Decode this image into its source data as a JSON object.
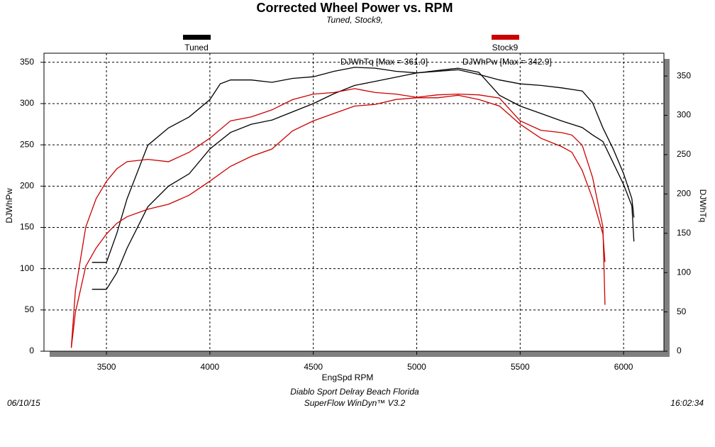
{
  "chart_data": {
    "type": "line",
    "title": "Corrected Wheel Power vs. RPM",
    "subtitle": "Tuned, Stock9,",
    "x_label": "EngSpd RPM",
    "y_label": "DJWhPw",
    "y2_label": "DJWhTq",
    "annotations": [
      "DJWhTq [Max = 361.0]",
      "DJWhPw [Max = 342.9]"
    ],
    "footer": [
      "Diablo Sport Delray Beach Florida",
      "SuperFlow WinDyn™ V3.2"
    ],
    "date": "06/10/15",
    "time": "16:02:34",
    "xlim": [
      3198,
      6195
    ],
    "xticks": [
      3500,
      4000,
      4500,
      5000,
      5500,
      6000
    ],
    "ylim": [
      0,
      361
    ],
    "yticks": [
      0,
      50,
      100,
      150,
      200,
      250,
      300,
      350
    ],
    "y2lim": [
      0,
      379
    ],
    "y2ticks": [
      0,
      50,
      100,
      150,
      200,
      250,
      300,
      350
    ],
    "grid": true,
    "series": [
      {
        "name": "Tuned",
        "color": "#000000",
        "x": [
          3430,
          3500,
          3550,
          3600,
          3700,
          3800,
          3900,
          4000,
          4050,
          4100,
          4200,
          4300,
          4400,
          4500,
          4600,
          4700,
          4800,
          4900,
          5000,
          5100,
          5200,
          5300,
          5400,
          5500,
          5600,
          5700,
          5800,
          5850,
          5900,
          5950,
          6000,
          6040,
          6050
        ],
        "values": [
          75,
          75,
          95,
          125,
          175,
          200,
          215,
          245,
          255,
          265,
          275,
          280,
          290,
          300,
          312,
          322,
          327,
          332,
          337,
          340,
          342.9,
          338,
          310,
          297,
          288,
          279,
          271,
          262,
          254,
          228,
          202,
          176,
          133
        ],
        "y2_values": [
          113,
          113,
          150,
          194,
          262,
          284,
          298,
          320,
          340,
          345,
          345,
          342,
          347,
          349,
          356,
          361,
          360,
          356,
          354,
          356,
          358,
          352,
          345,
          340,
          338,
          335,
          331,
          316,
          284,
          257,
          226,
          194,
          170
        ]
      },
      {
        "name": "Stock9",
        "color": "#cc0000",
        "x": [
          3330,
          3350,
          3400,
          3450,
          3500,
          3550,
          3600,
          3700,
          3800,
          3900,
          4000,
          4100,
          4200,
          4300,
          4400,
          4500,
          4600,
          4700,
          4800,
          4900,
          5000,
          5100,
          5200,
          5300,
          5400,
          5500,
          5600,
          5700,
          5750,
          5800,
          5850,
          5900,
          5910
        ],
        "values": [
          4,
          47,
          103,
          125,
          142,
          155,
          163,
          172,
          178,
          189,
          206,
          224,
          236,
          245,
          267,
          279,
          288,
          297,
          299,
          305,
          307,
          307,
          310,
          305,
          297,
          275,
          258,
          248,
          241,
          219,
          185,
          142,
          108
        ],
        "y2_values": [
          5,
          77,
          158,
          194,
          216,
          232,
          241,
          244,
          241,
          253,
          271,
          293,
          298,
          307,
          320,
          327,
          329,
          334,
          329,
          327,
          323,
          326,
          327,
          326,
          322,
          293,
          281,
          278,
          275,
          262,
          221,
          158,
          59
        ]
      }
    ]
  }
}
